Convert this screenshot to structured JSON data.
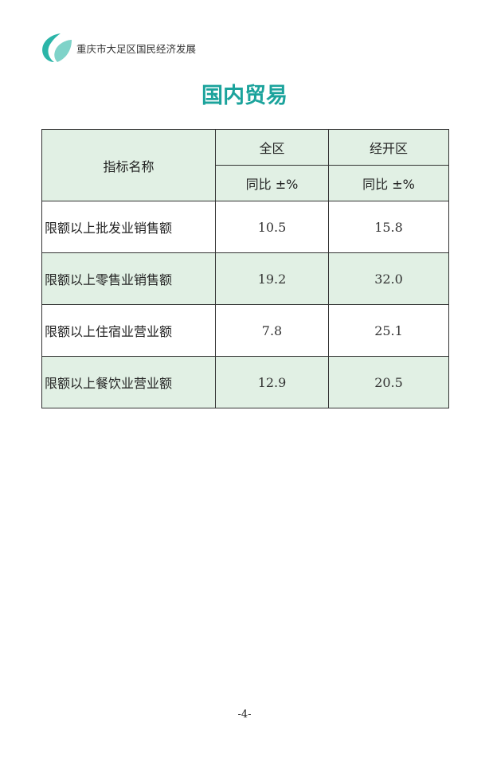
{
  "header": {
    "org_name": "重庆市大足区国民经济发展",
    "logo_icon": "logo-swoosh-icon",
    "accent": "#1ba39c"
  },
  "title": "国内贸易",
  "table": {
    "col_name": "指标名称",
    "groups": [
      "全区",
      "经开区"
    ],
    "sub": [
      "同比 ±%",
      "同比 ±%"
    ],
    "rows": [
      {
        "name": "限额以上批发业销售额",
        "values": [
          "10.5",
          "15.8"
        ]
      },
      {
        "name": "限额以上零售业销售额",
        "values": [
          "19.2",
          "32.0"
        ]
      },
      {
        "name": "限额以上住宿业营业额",
        "values": [
          "7.8",
          "25.1"
        ]
      },
      {
        "name": "限额以上餐饮业营业额",
        "values": [
          "12.9",
          "20.5"
        ]
      }
    ]
  },
  "page_number": "-4-"
}
